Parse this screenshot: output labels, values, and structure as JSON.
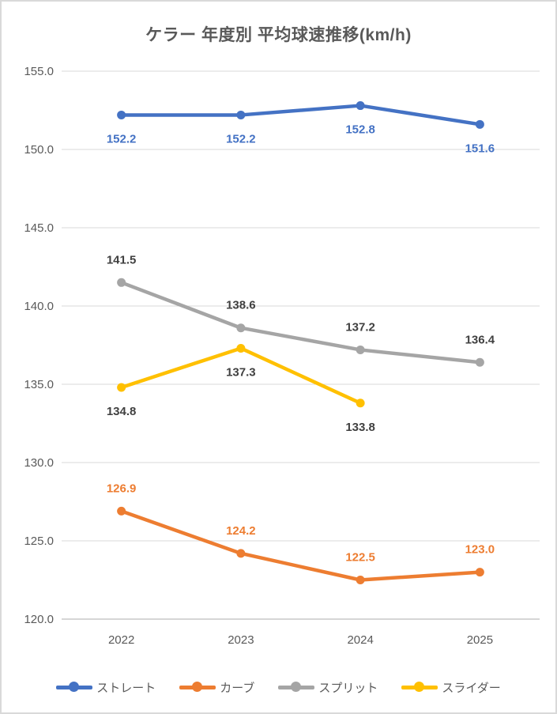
{
  "window": {
    "background": "#ffffff",
    "border_color": "#d9d9d9"
  },
  "chart_data": {
    "type": "line",
    "title": "ケラー 年度別 平均球速推移(km/h)",
    "title_color": "#595959",
    "categories": [
      "2022",
      "2023",
      "2024",
      "2025"
    ],
    "series": [
      {
        "name": "ストレート",
        "color": "#4472C4",
        "label_color": "#4472C4",
        "label_position": "below",
        "values": [
          152.2,
          152.2,
          152.8,
          151.6
        ]
      },
      {
        "name": "カーブ",
        "color": "#ED7D31",
        "label_color": "#ED7D31",
        "label_position": "above",
        "values": [
          126.9,
          124.2,
          122.5,
          123.0
        ]
      },
      {
        "name": "スプリット",
        "color": "#A5A5A5",
        "label_color": "#404040",
        "label_position": "above",
        "values": [
          141.5,
          138.6,
          137.2,
          136.4
        ]
      },
      {
        "name": "スライダー",
        "color": "#FFC000",
        "label_color": "#404040",
        "label_position": "below",
        "values": [
          134.8,
          137.3,
          133.8,
          null
        ]
      }
    ],
    "ylim": [
      120,
      155
    ],
    "yticks": [
      155,
      150,
      145,
      140,
      135,
      130,
      125,
      120
    ],
    "ytick_decimals": 1,
    "value_label_decimals": 1,
    "grid": true,
    "grid_color": "#d9d9d9",
    "axis_color": "#c9c9c9",
    "tick_label_color": "#595959",
    "legend_position": "bottom"
  }
}
